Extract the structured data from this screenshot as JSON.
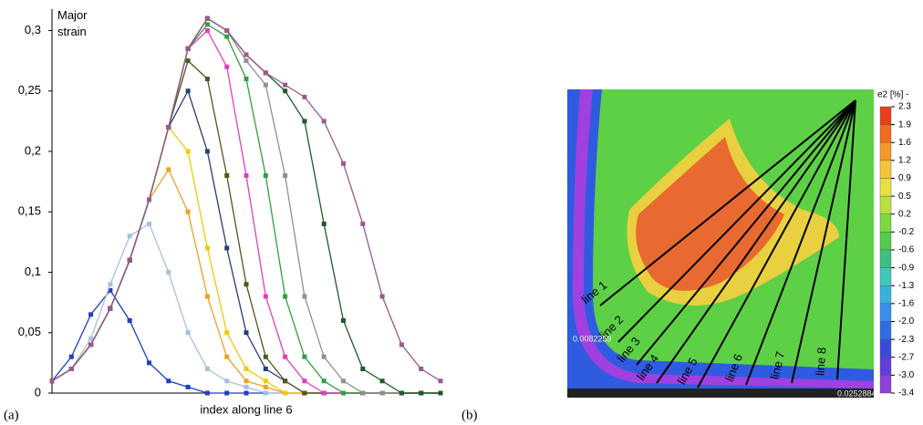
{
  "chart_data": {
    "type": "line",
    "y_label": "Major strain",
    "x_label": "index along line 6",
    "caption": "(a)",
    "x": [
      0,
      5,
      10,
      15,
      20,
      25,
      30,
      35,
      40,
      45,
      50,
      55,
      60,
      65,
      70,
      75,
      80,
      85,
      90,
      95,
      100
    ],
    "xlim": [
      0,
      100
    ],
    "ylim": [
      0,
      0.32
    ],
    "yticks": [
      {
        "value": 0,
        "label": "0"
      },
      {
        "value": 0.05,
        "label": "0,05"
      },
      {
        "value": 0.1,
        "label": "0,1"
      },
      {
        "value": 0.15,
        "label": "0,15"
      },
      {
        "value": 0.2,
        "label": "0,2"
      },
      {
        "value": 0.25,
        "label": "0,25"
      },
      {
        "value": 0.3,
        "label": "0,3"
      }
    ],
    "series": [
      {
        "color": "#1f3fbf",
        "values": [
          0.01,
          0.03,
          0.065,
          0.085,
          0.06,
          0.025,
          0.01,
          0.005,
          0,
          0,
          0,
          0,
          0,
          0,
          0,
          0,
          0,
          0,
          0,
          0,
          0
        ]
      },
      {
        "color": "#a8c0dc",
        "values": [
          0.01,
          0.02,
          0.045,
          0.09,
          0.13,
          0.14,
          0.1,
          0.05,
          0.02,
          0.01,
          0.005,
          0,
          0,
          0,
          0,
          0,
          0,
          0,
          0,
          0,
          0
        ]
      },
      {
        "color": "#f0a020",
        "values": [
          0.01,
          0.02,
          0.04,
          0.07,
          0.11,
          0.16,
          0.185,
          0.15,
          0.08,
          0.03,
          0.01,
          0.005,
          0,
          0,
          0,
          0,
          0,
          0,
          0,
          0,
          0
        ]
      },
      {
        "color": "#f5c800",
        "values": [
          0.01,
          0.02,
          0.04,
          0.07,
          0.11,
          0.16,
          0.22,
          0.2,
          0.12,
          0.05,
          0.02,
          0.01,
          0,
          0,
          0,
          0,
          0,
          0,
          0,
          0,
          0
        ]
      },
      {
        "color": "#283c78",
        "values": [
          0.01,
          0.02,
          0.04,
          0.07,
          0.11,
          0.16,
          0.22,
          0.25,
          0.2,
          0.12,
          0.05,
          0.02,
          0.01,
          0,
          0,
          0,
          0,
          0,
          0,
          0,
          0
        ]
      },
      {
        "color": "#4b5a1e",
        "values": [
          0.01,
          0.02,
          0.04,
          0.07,
          0.11,
          0.16,
          0.22,
          0.275,
          0.26,
          0.18,
          0.09,
          0.03,
          0.01,
          0,
          0,
          0,
          0,
          0,
          0,
          0,
          0
        ]
      },
      {
        "color": "#e040c0",
        "values": [
          0.01,
          0.02,
          0.04,
          0.07,
          0.11,
          0.16,
          0.22,
          0.285,
          0.3,
          0.27,
          0.18,
          0.08,
          0.03,
          0.01,
          0,
          0,
          0,
          0,
          0,
          0,
          0
        ]
      },
      {
        "color": "#30a040",
        "values": [
          0.01,
          0.02,
          0.04,
          0.07,
          0.11,
          0.16,
          0.22,
          0.285,
          0.305,
          0.295,
          0.26,
          0.18,
          0.08,
          0.03,
          0.01,
          0,
          0,
          0,
          0,
          0,
          0
        ]
      },
      {
        "color": "#909090",
        "values": [
          0.01,
          0.02,
          0.04,
          0.07,
          0.11,
          0.16,
          0.22,
          0.285,
          0.31,
          0.3,
          0.275,
          0.255,
          0.18,
          0.08,
          0.03,
          0.01,
          0,
          0,
          0,
          0,
          0
        ]
      },
      {
        "color": "#1f5a2a",
        "values": [
          0.01,
          0.02,
          0.04,
          0.07,
          0.11,
          0.16,
          0.22,
          0.285,
          0.31,
          0.3,
          0.28,
          0.265,
          0.25,
          0.225,
          0.14,
          0.06,
          0.02,
          0.01,
          0,
          0,
          0
        ]
      },
      {
        "color": "#9a5a8a",
        "values": [
          0.01,
          0.02,
          0.04,
          0.07,
          0.11,
          0.16,
          0.22,
          0.285,
          0.31,
          0.3,
          0.28,
          0.265,
          0.255,
          0.245,
          0.225,
          0.19,
          0.14,
          0.08,
          0.04,
          0.02,
          0.01
        ]
      }
    ]
  },
  "strain_map": {
    "caption": "(b)",
    "colorbar": {
      "label": "e2 [%] -",
      "ticks": [
        2.3,
        1.9,
        1.6,
        1.2,
        0.9,
        0.5,
        0.2,
        -0.2,
        -0.6,
        -0.9,
        -1.3,
        -1.6,
        {
          "value": -2,
          "label": "-2.0"
        },
        -2.3,
        -2.7,
        {
          "value": -3,
          "label": "-3.0"
        },
        -3.4
      ],
      "colors": [
        "#e8401c",
        "#f06a20",
        "#f59a2a",
        "#f6c43a",
        "#e8e040",
        "#b8e040",
        "#7ed840",
        "#50cc48",
        "#40c080",
        "#40c8b8",
        "#38b0e0",
        "#3890e8",
        "#2f6ce0",
        "#3a4ad8",
        "#6040d8",
        "#9040d8"
      ]
    },
    "lines": [
      "line 1",
      "line 2",
      "line 3",
      "line 4",
      "line 5",
      "line 6",
      "line 7",
      "line 8"
    ],
    "annotations": [
      "0.0082259",
      "0.0252884"
    ]
  }
}
